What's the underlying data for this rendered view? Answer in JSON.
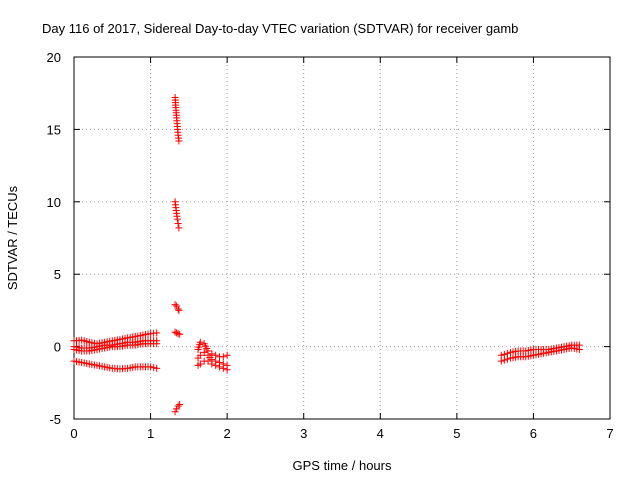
{
  "chart_data": {
    "type": "scatter",
    "title": "Day 116 of 2017, Sidereal Day-to-day VTEC variation (SDTVAR) for receiver gamb",
    "xlabel": "GPS time / hours",
    "ylabel": "SDTVAR / TECUs",
    "xlim": [
      0,
      7
    ],
    "ylim": [
      -5,
      20
    ],
    "xticks": [
      0,
      1,
      2,
      3,
      4,
      5,
      6,
      7
    ],
    "yticks": [
      -5,
      0,
      5,
      10,
      15,
      20
    ],
    "xtick_labels": [
      "0",
      "1",
      "2",
      "3",
      "4",
      "5",
      "6",
      "7"
    ],
    "ytick_labels": [
      "-5",
      "0",
      "5",
      "10",
      "15",
      "20"
    ],
    "grid": true,
    "marker": "+",
    "color": "#ff0000",
    "series": [
      {
        "segments": [
          {
            "x": [
              0.0,
              0.1,
              0.2,
              0.3,
              0.4,
              0.5,
              0.6,
              0.7,
              0.8,
              0.9,
              1.0,
              1.08
            ],
            "y": [
              0.4,
              0.45,
              0.3,
              0.2,
              0.3,
              0.4,
              0.5,
              0.6,
              0.7,
              0.8,
              0.9,
              0.95
            ]
          },
          {
            "x": [
              0.0,
              0.1,
              0.2,
              0.3,
              0.4,
              0.5,
              0.6,
              0.7,
              0.8,
              0.9,
              1.0,
              1.08
            ],
            "y": [
              0.0,
              -0.1,
              -0.1,
              0.0,
              0.1,
              0.1,
              0.2,
              0.3,
              0.3,
              0.4,
              0.4,
              0.4
            ]
          },
          {
            "x": [
              0.0,
              0.1,
              0.2,
              0.3,
              0.4,
              0.5,
              0.6,
              0.7,
              0.8,
              0.9,
              1.0,
              1.08
            ],
            "y": [
              -0.2,
              -0.3,
              -0.3,
              -0.2,
              -0.1,
              0.0,
              0.0,
              0.1,
              0.1,
              0.2,
              0.2,
              0.2
            ]
          },
          {
            "x": [
              0.0,
              0.1,
              0.2,
              0.3,
              0.4,
              0.5,
              0.6,
              0.7,
              0.8,
              0.9,
              1.0,
              1.08
            ],
            "y": [
              -1.0,
              -1.1,
              -1.2,
              -1.3,
              -1.4,
              -1.5,
              -1.55,
              -1.5,
              -1.4,
              -1.4,
              -1.4,
              -1.5
            ]
          },
          {
            "x": [
              1.32,
              1.33,
              1.34,
              1.35,
              1.36,
              1.37
            ],
            "y": [
              17.2,
              16.5,
              15.8,
              15.2,
              14.6,
              14.2
            ]
          },
          {
            "x": [
              1.32,
              1.33,
              1.34,
              1.35,
              1.36,
              1.37
            ],
            "y": [
              10.0,
              9.6,
              9.2,
              8.8,
              8.5,
              8.2
            ]
          },
          {
            "x": [
              1.32,
              1.34,
              1.36,
              1.37
            ],
            "y": [
              2.9,
              2.8,
              2.6,
              2.5
            ]
          },
          {
            "x": [
              1.32,
              1.34,
              1.36,
              1.38
            ],
            "y": [
              1.0,
              0.95,
              0.9,
              0.85
            ]
          },
          {
            "x": [
              1.32,
              1.34,
              1.36,
              1.38
            ],
            "y": [
              -4.5,
              -4.3,
              -4.1,
              -4.0
            ]
          },
          {
            "x": [
              1.62,
              1.65,
              1.7,
              1.75,
              1.8,
              1.85,
              1.9,
              1.95,
              2.0
            ],
            "y": [
              -0.2,
              0.3,
              0.2,
              -0.3,
              -0.5,
              -0.6,
              -0.7,
              -0.7,
              -0.6
            ]
          },
          {
            "x": [
              1.62,
              1.65,
              1.7,
              1.75,
              1.8,
              1.85,
              1.9,
              1.95,
              2.0
            ],
            "y": [
              -0.8,
              -0.6,
              -0.4,
              -0.6,
              -0.9,
              -1.0,
              -1.1,
              -1.2,
              -1.3
            ]
          },
          {
            "x": [
              1.62,
              1.65,
              1.7,
              1.75,
              1.8,
              1.85,
              1.9,
              1.95,
              2.0
            ],
            "y": [
              -1.3,
              -1.2,
              -1.0,
              -1.0,
              -1.2,
              -1.3,
              -1.4,
              -1.5,
              -1.6
            ]
          },
          {
            "x": [
              5.58,
              5.7,
              5.8,
              5.9,
              6.0,
              6.1,
              6.2,
              6.3,
              6.4,
              6.5,
              6.6
            ],
            "y": [
              -0.6,
              -0.4,
              -0.3,
              -0.3,
              -0.2,
              -0.2,
              -0.2,
              -0.1,
              0.0,
              0.1,
              0.1
            ]
          },
          {
            "x": [
              5.58,
              5.7,
              5.8,
              5.9,
              6.0,
              6.1,
              6.2,
              6.3,
              6.4,
              6.5,
              6.6
            ],
            "y": [
              -1.0,
              -0.8,
              -0.7,
              -0.7,
              -0.6,
              -0.5,
              -0.4,
              -0.3,
              -0.2,
              -0.1,
              -0.2
            ]
          }
        ]
      }
    ]
  }
}
